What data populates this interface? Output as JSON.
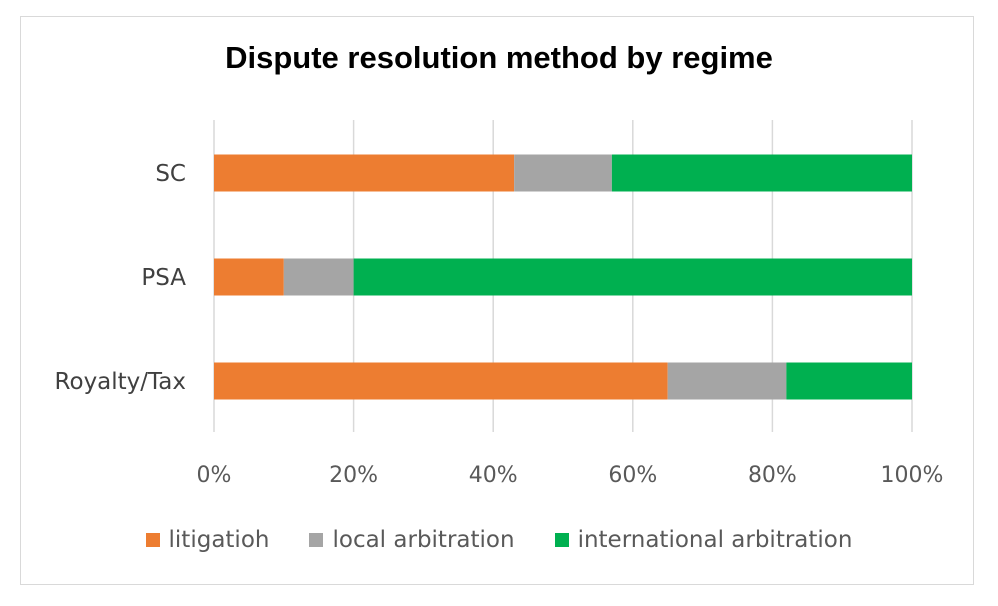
{
  "chart_data": {
    "type": "bar",
    "orientation": "horizontal",
    "stacked": "percent",
    "title": "Dispute resolution method by regime",
    "categories": [
      "SC",
      "PSA",
      "Royalty/Tax"
    ],
    "series": [
      {
        "name": "litigatioh",
        "color": "#ED7D31",
        "values": [
          43,
          10,
          65
        ]
      },
      {
        "name": "local arbitration",
        "color": "#A5A5A5",
        "values": [
          14,
          10,
          17
        ]
      },
      {
        "name": "international arbitration",
        "color": "#00B050",
        "values": [
          43,
          80,
          18
        ]
      }
    ],
    "x_ticks": [
      "0%",
      "20%",
      "40%",
      "60%",
      "80%",
      "100%"
    ],
    "xlim": [
      0,
      100
    ],
    "grid": true,
    "legend_position": "bottom"
  }
}
